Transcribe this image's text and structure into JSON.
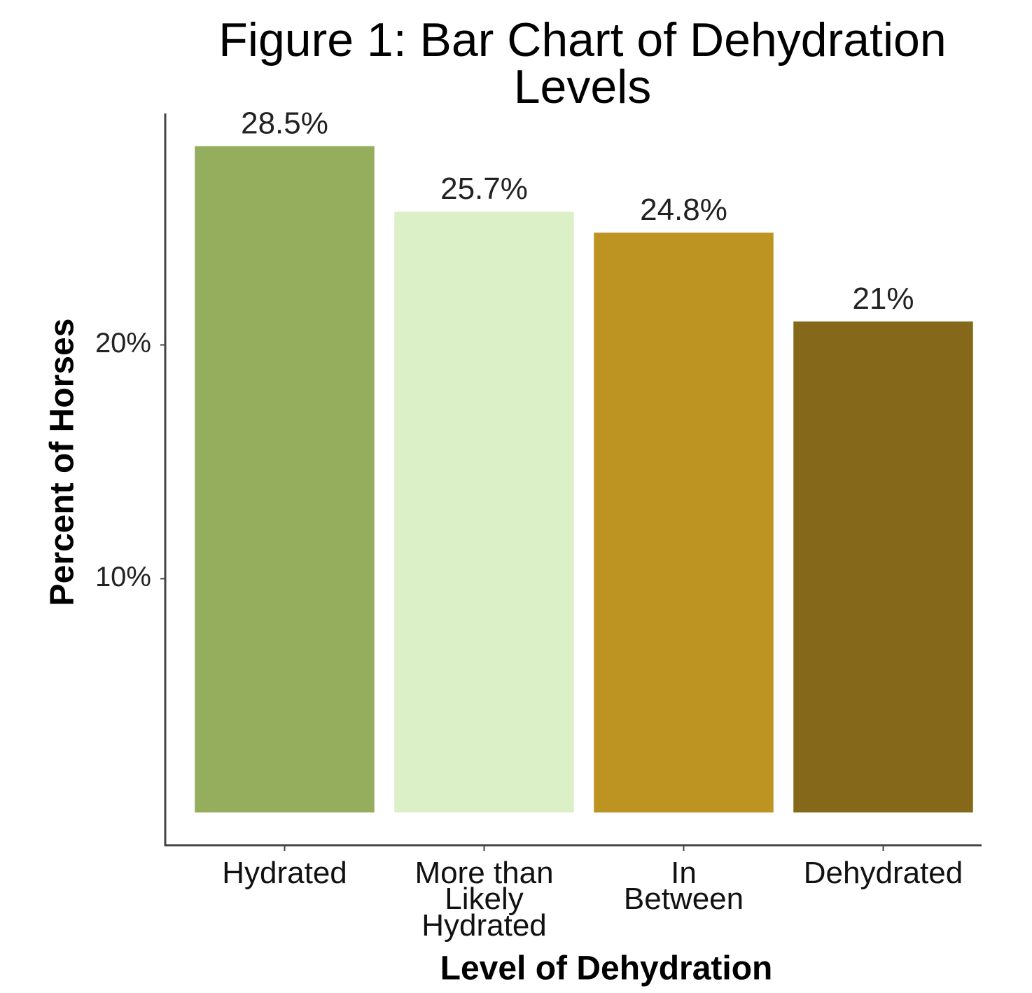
{
  "chart_data": {
    "type": "bar",
    "title": "Figure 1: Bar Chart of Dehydration\nLevels",
    "xlabel": "Level of Dehydration",
    "ylabel": "Percent of Horses",
    "categories": [
      "Hydrated",
      "More than\nLikely\nHydrated",
      "In\nBetween",
      "Dehydrated"
    ],
    "values": [
      28.5,
      25.7,
      24.8,
      21
    ],
    "value_labels": [
      "28.5%",
      "25.7%",
      "24.8%",
      "21%"
    ],
    "colors": [
      "#94ae5e",
      "#dcf0c8",
      "#bd9322",
      "#86681a"
    ],
    "ylim": [
      -1.4,
      29.9
    ],
    "yticks": [
      {
        "value": 10,
        "label": "10%"
      },
      {
        "value": 20,
        "label": "20%"
      }
    ],
    "grid": false
  }
}
